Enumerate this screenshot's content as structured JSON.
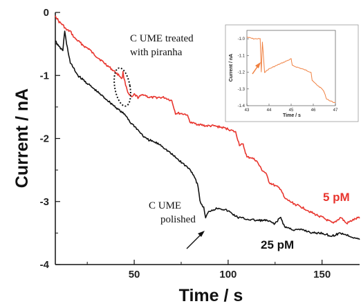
{
  "chart_data": [
    {
      "type": "line",
      "xlabel": "Time / s",
      "ylabel": "Current / nA",
      "xlim": [
        8,
        170
      ],
      "ylim": [
        -4,
        0
      ],
      "xticks": [
        50,
        100,
        150
      ],
      "yticks": [
        0,
        -1,
        -2,
        -3,
        -4
      ],
      "grid": false,
      "series": [
        {
          "name": "5 pM",
          "color": "#e8352e",
          "x": [
            8,
            10,
            12,
            14,
            16,
            18,
            20,
            22,
            24,
            26,
            28,
            30,
            32,
            34,
            36,
            38,
            40,
            42,
            43.6,
            44,
            45,
            47,
            49,
            50,
            52,
            55,
            58,
            62,
            66,
            70,
            72,
            74,
            78,
            80,
            85,
            88,
            92,
            96,
            100,
            104,
            106,
            108,
            110,
            112,
            115,
            118,
            120,
            122,
            125,
            128,
            130,
            133,
            136,
            140,
            143,
            146,
            150,
            153,
            156,
            158,
            160,
            163,
            166,
            170
          ],
          "y": [
            -0.05,
            -0.15,
            -0.2,
            -0.28,
            -0.3,
            -0.4,
            -0.45,
            -0.5,
            -0.55,
            -0.58,
            -0.65,
            -0.7,
            -0.75,
            -0.8,
            -0.85,
            -0.9,
            -0.95,
            -1.0,
            -1.05,
            -0.95,
            -1.1,
            -1.3,
            -1.35,
            -1.3,
            -1.35,
            -1.3,
            -1.35,
            -1.35,
            -1.35,
            -1.4,
            -1.6,
            -1.6,
            -1.62,
            -1.75,
            -1.78,
            -1.8,
            -1.8,
            -1.82,
            -1.85,
            -1.9,
            -2.1,
            -2.1,
            -2.3,
            -2.3,
            -2.35,
            -2.5,
            -2.55,
            -2.7,
            -2.75,
            -2.8,
            -2.95,
            -3.0,
            -3.05,
            -3.1,
            -3.15,
            -3.2,
            -3.25,
            -3.3,
            -3.35,
            -3.3,
            -3.25,
            -3.35,
            -3.3,
            -3.25
          ]
        },
        {
          "name": "25 pM",
          "color": "#111111",
          "x": [
            8,
            10,
            12,
            13,
            14,
            16,
            18,
            20,
            22,
            24,
            26,
            28,
            30,
            32,
            34,
            36,
            38,
            40,
            42,
            44,
            46,
            48,
            50,
            53,
            56,
            60,
            64,
            68,
            72,
            76,
            80,
            82,
            84,
            85,
            86,
            87,
            88,
            90,
            95,
            100,
            105,
            110,
            115,
            120,
            125,
            128,
            130,
            135,
            140,
            145,
            150,
            155,
            160,
            165,
            170
          ],
          "y": [
            -0.45,
            -0.55,
            -0.6,
            -0.3,
            -0.5,
            -0.8,
            -0.9,
            -1.0,
            -1.05,
            -1.1,
            -1.15,
            -1.2,
            -1.25,
            -1.3,
            -1.35,
            -1.4,
            -1.45,
            -1.5,
            -1.55,
            -1.6,
            -1.65,
            -1.75,
            -1.8,
            -1.9,
            -2.0,
            -2.05,
            -2.1,
            -2.2,
            -2.3,
            -2.4,
            -2.5,
            -2.6,
            -2.75,
            -3.0,
            -3.05,
            -3.1,
            -3.25,
            -3.15,
            -3.1,
            -3.15,
            -3.25,
            -3.28,
            -3.3,
            -3.3,
            -3.35,
            -3.25,
            -3.4,
            -3.45,
            -3.45,
            -3.5,
            -3.5,
            -3.55,
            -3.5,
            -3.55,
            -3.6
          ]
        }
      ],
      "annotations": [
        {
          "text_lines": [
            "C UME treated",
            "with piranha"
          ]
        },
        {
          "text_lines": [
            "C  UME",
            "polished"
          ]
        }
      ],
      "series_labels": [
        "5 pM",
        "25 pM"
      ]
    },
    {
      "type": "line",
      "xlabel": "Time / s",
      "ylabel": "Current / nA",
      "xlim": [
        43,
        47
      ],
      "ylim": [
        -1.4,
        -0.95
      ],
      "xticks": [
        43,
        44,
        45,
        46,
        47
      ],
      "yticks": [
        -1.0,
        -1.1,
        -1.2,
        -1.3,
        -1.4
      ],
      "series": [
        {
          "name": "",
          "color": "#f08040",
          "x": [
            43.0,
            43.3,
            43.6,
            43.65,
            43.7,
            43.8,
            44.0,
            44.5,
            45.0,
            45.05,
            45.5,
            45.9,
            45.95,
            46.2,
            46.4,
            46.5,
            46.6,
            46.9,
            47.0
          ],
          "y": [
            -0.99,
            -1.0,
            -1.0,
            -1.2,
            -1.02,
            -1.2,
            -1.18,
            -1.15,
            -1.12,
            -1.16,
            -1.18,
            -1.2,
            -1.25,
            -1.28,
            -1.3,
            -1.32,
            -1.36,
            -1.38,
            -1.38
          ]
        }
      ]
    }
  ],
  "colors": {
    "red": "#e8352e",
    "black": "#111111",
    "inset_line": "#f08040",
    "arrow": "#f08040"
  }
}
